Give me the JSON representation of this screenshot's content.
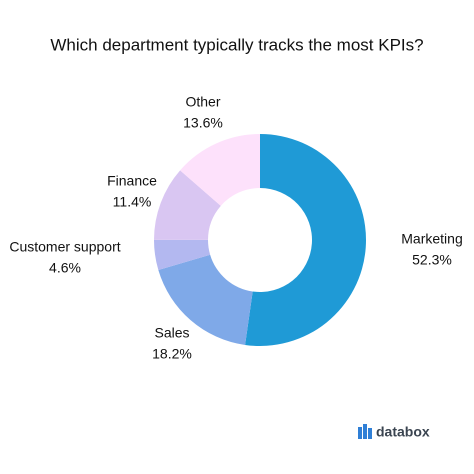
{
  "chart_data": {
    "type": "donut",
    "title": "Which department typically tracks the most KPIs?",
    "categories": [
      "Marketing",
      "Sales",
      "Customer support",
      "Finance",
      "Other"
    ],
    "values": [
      52.3,
      18.2,
      4.6,
      11.4,
      13.6
    ],
    "value_labels": [
      "52.3%",
      "18.2%",
      "4.6%",
      "11.4%",
      "13.6%"
    ],
    "colors": [
      "#1f9ad6",
      "#7fa9e8",
      "#b3b8f0",
      "#d9c6f2",
      "#fde1fb"
    ]
  },
  "branding": "databox"
}
